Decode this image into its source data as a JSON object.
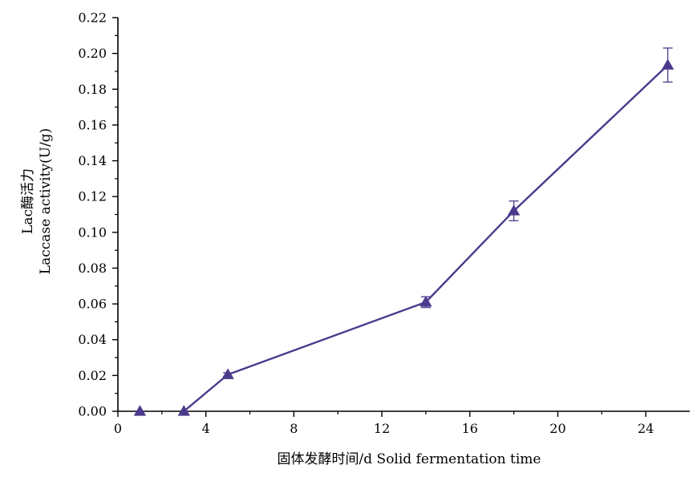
{
  "chart_data": {
    "type": "line",
    "xlabel": "固体发酵时间/d Solid fermentation time",
    "ylabel_line1": "Lac酶活力",
    "ylabel_line2": "Laccase activity(U/g)",
    "xlim": [
      0,
      26
    ],
    "ylim": [
      0,
      0.22
    ],
    "x_ticks": [
      0,
      4,
      8,
      12,
      16,
      20,
      24
    ],
    "x_tick_labels": [
      "0",
      "4",
      "8",
      "12",
      "16",
      "20",
      "24"
    ],
    "y_ticks": [
      0,
      0.02,
      0.04,
      0.06,
      0.08,
      0.1,
      0.12,
      0.14,
      0.16,
      0.18,
      0.2,
      0.22
    ],
    "y_tick_labels": [
      "0.00",
      "0.02",
      "0.04",
      "0.06",
      "0.08",
      "0.10",
      "0.12",
      "0.14",
      "0.16",
      "0.18",
      "0.20",
      "0.22"
    ],
    "grid": false,
    "marker": "triangle",
    "series": [
      {
        "x": [
          1,
          3,
          5,
          14,
          18,
          25
        ],
        "y": [
          0.0,
          0.0,
          0.0205,
          0.061,
          0.112,
          0.1935
        ],
        "error": [
          0.0,
          0.0,
          0.001,
          0.003,
          0.0055,
          0.0095
        ],
        "color": "#4b3a8c",
        "connected_from_index": 1
      }
    ]
  }
}
